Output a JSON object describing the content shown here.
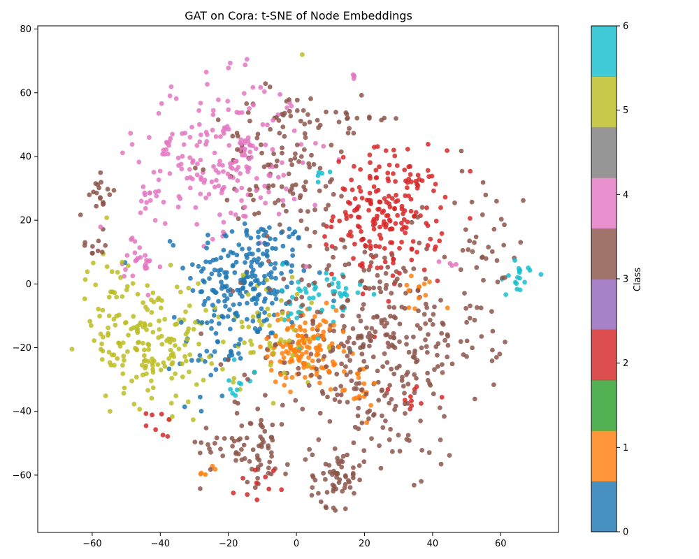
{
  "chart_data": {
    "type": "scatter",
    "title": "GAT on Cora: t-SNE of Node Embeddings",
    "xlabel": "",
    "ylabel": "",
    "xlim": [
      -76,
      77
    ],
    "ylim": [
      -78,
      81
    ],
    "xticks": [
      -60,
      -40,
      -20,
      0,
      20,
      40,
      60
    ],
    "yticks": [
      -60,
      -40,
      -20,
      0,
      20,
      40,
      60,
      80
    ],
    "grid": false,
    "colorbar": {
      "label": "Class",
      "range": [
        0,
        6
      ],
      "ticks": [
        0,
        1,
        2,
        3,
        4,
        5,
        6
      ],
      "colors": [
        "#1f77b4",
        "#ff7f0e",
        "#2ca02c",
        "#d62728",
        "#9467bd",
        "#8c564b",
        "#e377c2",
        "#7f7f7f",
        "#bcbd22",
        "#17becf"
      ]
    },
    "clusters": [
      {
        "class": 0,
        "cx": -14,
        "cy": 2,
        "sx": 9,
        "sy": 10,
        "n": 210
      },
      {
        "class": 0,
        "cx": -25,
        "cy": -20,
        "sx": 5,
        "sy": 8,
        "n": 40
      },
      {
        "class": 1,
        "cx": 2,
        "cy": -20,
        "sx": 5,
        "sy": 6,
        "n": 130
      },
      {
        "class": 1,
        "cx": 17,
        "cy": -32,
        "sx": 4,
        "sy": 4,
        "n": 20
      },
      {
        "class": 1,
        "cx": 36,
        "cy": -3,
        "sx": 3,
        "sy": 4,
        "n": 12
      },
      {
        "class": 1,
        "cx": -27,
        "cy": -59,
        "sx": 2,
        "sy": 1,
        "n": 5
      },
      {
        "class": 3,
        "cx": 27,
        "cy": 22,
        "sx": 8,
        "sy": 10,
        "n": 210
      },
      {
        "class": 3,
        "cx": -11,
        "cy": -63,
        "sx": 3,
        "sy": 3,
        "n": 10
      },
      {
        "class": 3,
        "cx": 34,
        "cy": -35,
        "sx": 3,
        "sy": 3,
        "n": 10
      },
      {
        "class": 3,
        "cx": -40,
        "cy": -44,
        "sx": 2,
        "sy": 2,
        "n": 8
      },
      {
        "class": 5,
        "cx": 22,
        "cy": -20,
        "sx": 16,
        "sy": 18,
        "n": 360
      },
      {
        "class": 5,
        "cx": -3,
        "cy": 38,
        "sx": 10,
        "sy": 12,
        "n": 120
      },
      {
        "class": 5,
        "cx": -14,
        "cy": -50,
        "sx": 7,
        "sy": 6,
        "n": 70
      },
      {
        "class": 5,
        "cx": 12,
        "cy": -60,
        "sx": 4,
        "sy": 5,
        "n": 60
      },
      {
        "class": 5,
        "cx": -57,
        "cy": 28,
        "sx": 2,
        "sy": 3,
        "n": 18
      },
      {
        "class": 5,
        "cx": -59,
        "cy": 12,
        "sx": 2,
        "sy": 2,
        "n": 10
      },
      {
        "class": 5,
        "cx": 55,
        "cy": 10,
        "sx": 6,
        "sy": 12,
        "n": 40
      },
      {
        "class": 5,
        "cx": 18,
        "cy": 52,
        "sx": 5,
        "sy": 3,
        "n": 16
      },
      {
        "class": 6,
        "cx": -22,
        "cy": 40,
        "sx": 12,
        "sy": 12,
        "n": 210
      },
      {
        "class": 6,
        "cx": -46,
        "cy": 5,
        "sx": 3,
        "sy": 6,
        "n": 25
      },
      {
        "class": 6,
        "cx": -42,
        "cy": 29,
        "sx": 2,
        "sy": 2,
        "n": 10
      },
      {
        "class": 6,
        "cx": 17,
        "cy": 65,
        "sx": 1,
        "sy": 0.5,
        "n": 4
      },
      {
        "class": 6,
        "cx": 44,
        "cy": 7,
        "sx": 2,
        "sy": 2,
        "n": 4
      },
      {
        "class": 8,
        "cx": -42,
        "cy": -18,
        "sx": 8,
        "sy": 10,
        "n": 160
      },
      {
        "class": 8,
        "cx": -56,
        "cy": -8,
        "sx": 3,
        "sy": 10,
        "n": 35
      },
      {
        "class": 8,
        "cx": -8,
        "cy": -14,
        "sx": 8,
        "sy": 10,
        "n": 55
      },
      {
        "class": 8,
        "cx": 2,
        "cy": 73,
        "sx": 0.5,
        "sy": 0.5,
        "n": 1
      },
      {
        "class": 9,
        "cx": 8,
        "cy": -5,
        "sx": 6,
        "sy": 6,
        "n": 50
      },
      {
        "class": 9,
        "cx": 64,
        "cy": 2,
        "sx": 3,
        "sy": 3,
        "n": 18
      },
      {
        "class": 9,
        "cx": -16,
        "cy": -32,
        "sx": 2,
        "sy": 3,
        "n": 10
      },
      {
        "class": 9,
        "cx": 7,
        "cy": 34,
        "sx": 1,
        "sy": 1,
        "n": 5
      }
    ]
  }
}
